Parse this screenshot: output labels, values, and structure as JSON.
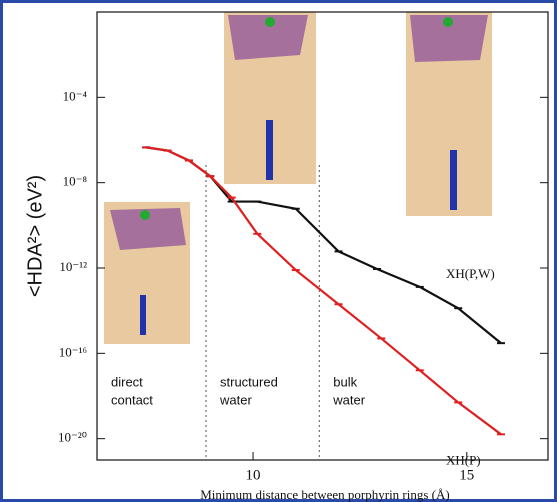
{
  "chart_data": {
    "type": "line",
    "x_label": "Minimum distance between porphyrin rings (Å)",
    "y_label": "<HDA²> (eV²)",
    "xlim": [
      6.35,
      16.9
    ],
    "xticks": [
      10,
      15
    ],
    "ylim": [
      1e-21,
      1
    ],
    "log_y": true,
    "yticks": [
      {
        "value": 0.0001,
        "label": "10⁻⁴"
      },
      {
        "value": 1e-08,
        "label": "10⁻⁸"
      },
      {
        "value": 1e-12,
        "label": "10⁻¹²"
      },
      {
        "value": 1e-16,
        "label": "10⁻¹⁶"
      },
      {
        "value": 1e-20,
        "label": "10⁻²⁰"
      }
    ],
    "dividers": [
      8.9,
      11.55
    ],
    "region_labels": [
      [
        "direct",
        "contact"
      ],
      [
        "structured",
        "water"
      ],
      [
        "bulk",
        "water"
      ]
    ],
    "series": [
      {
        "name": "XH(P,W)",
        "color": "#111111",
        "x": [
          7.5,
          8,
          8.5,
          9,
          9.5,
          10.1,
          11,
          12,
          12.9,
          13.9,
          14.8,
          15.8
        ],
        "values": [
          4.5e-07,
          3.2e-07,
          1.1e-07,
          2e-08,
          1.3e-09,
          1.3e-09,
          6e-10,
          6e-12,
          9e-13,
          1.3e-13,
          1.3e-14,
          3e-16
        ]
      },
      {
        "name": "XH(P)",
        "color": "#e02020",
        "x": [
          7.5,
          8,
          8.5,
          9,
          9.5,
          10.1,
          11,
          12,
          13,
          13.9,
          14.8,
          15.8
        ],
        "values": [
          4.5e-07,
          3.2e-07,
          1.1e-07,
          2e-08,
          2e-09,
          4e-11,
          8e-13,
          2e-14,
          5e-16,
          1.6e-17,
          5e-19,
          1.6e-20
        ]
      }
    ]
  }
}
